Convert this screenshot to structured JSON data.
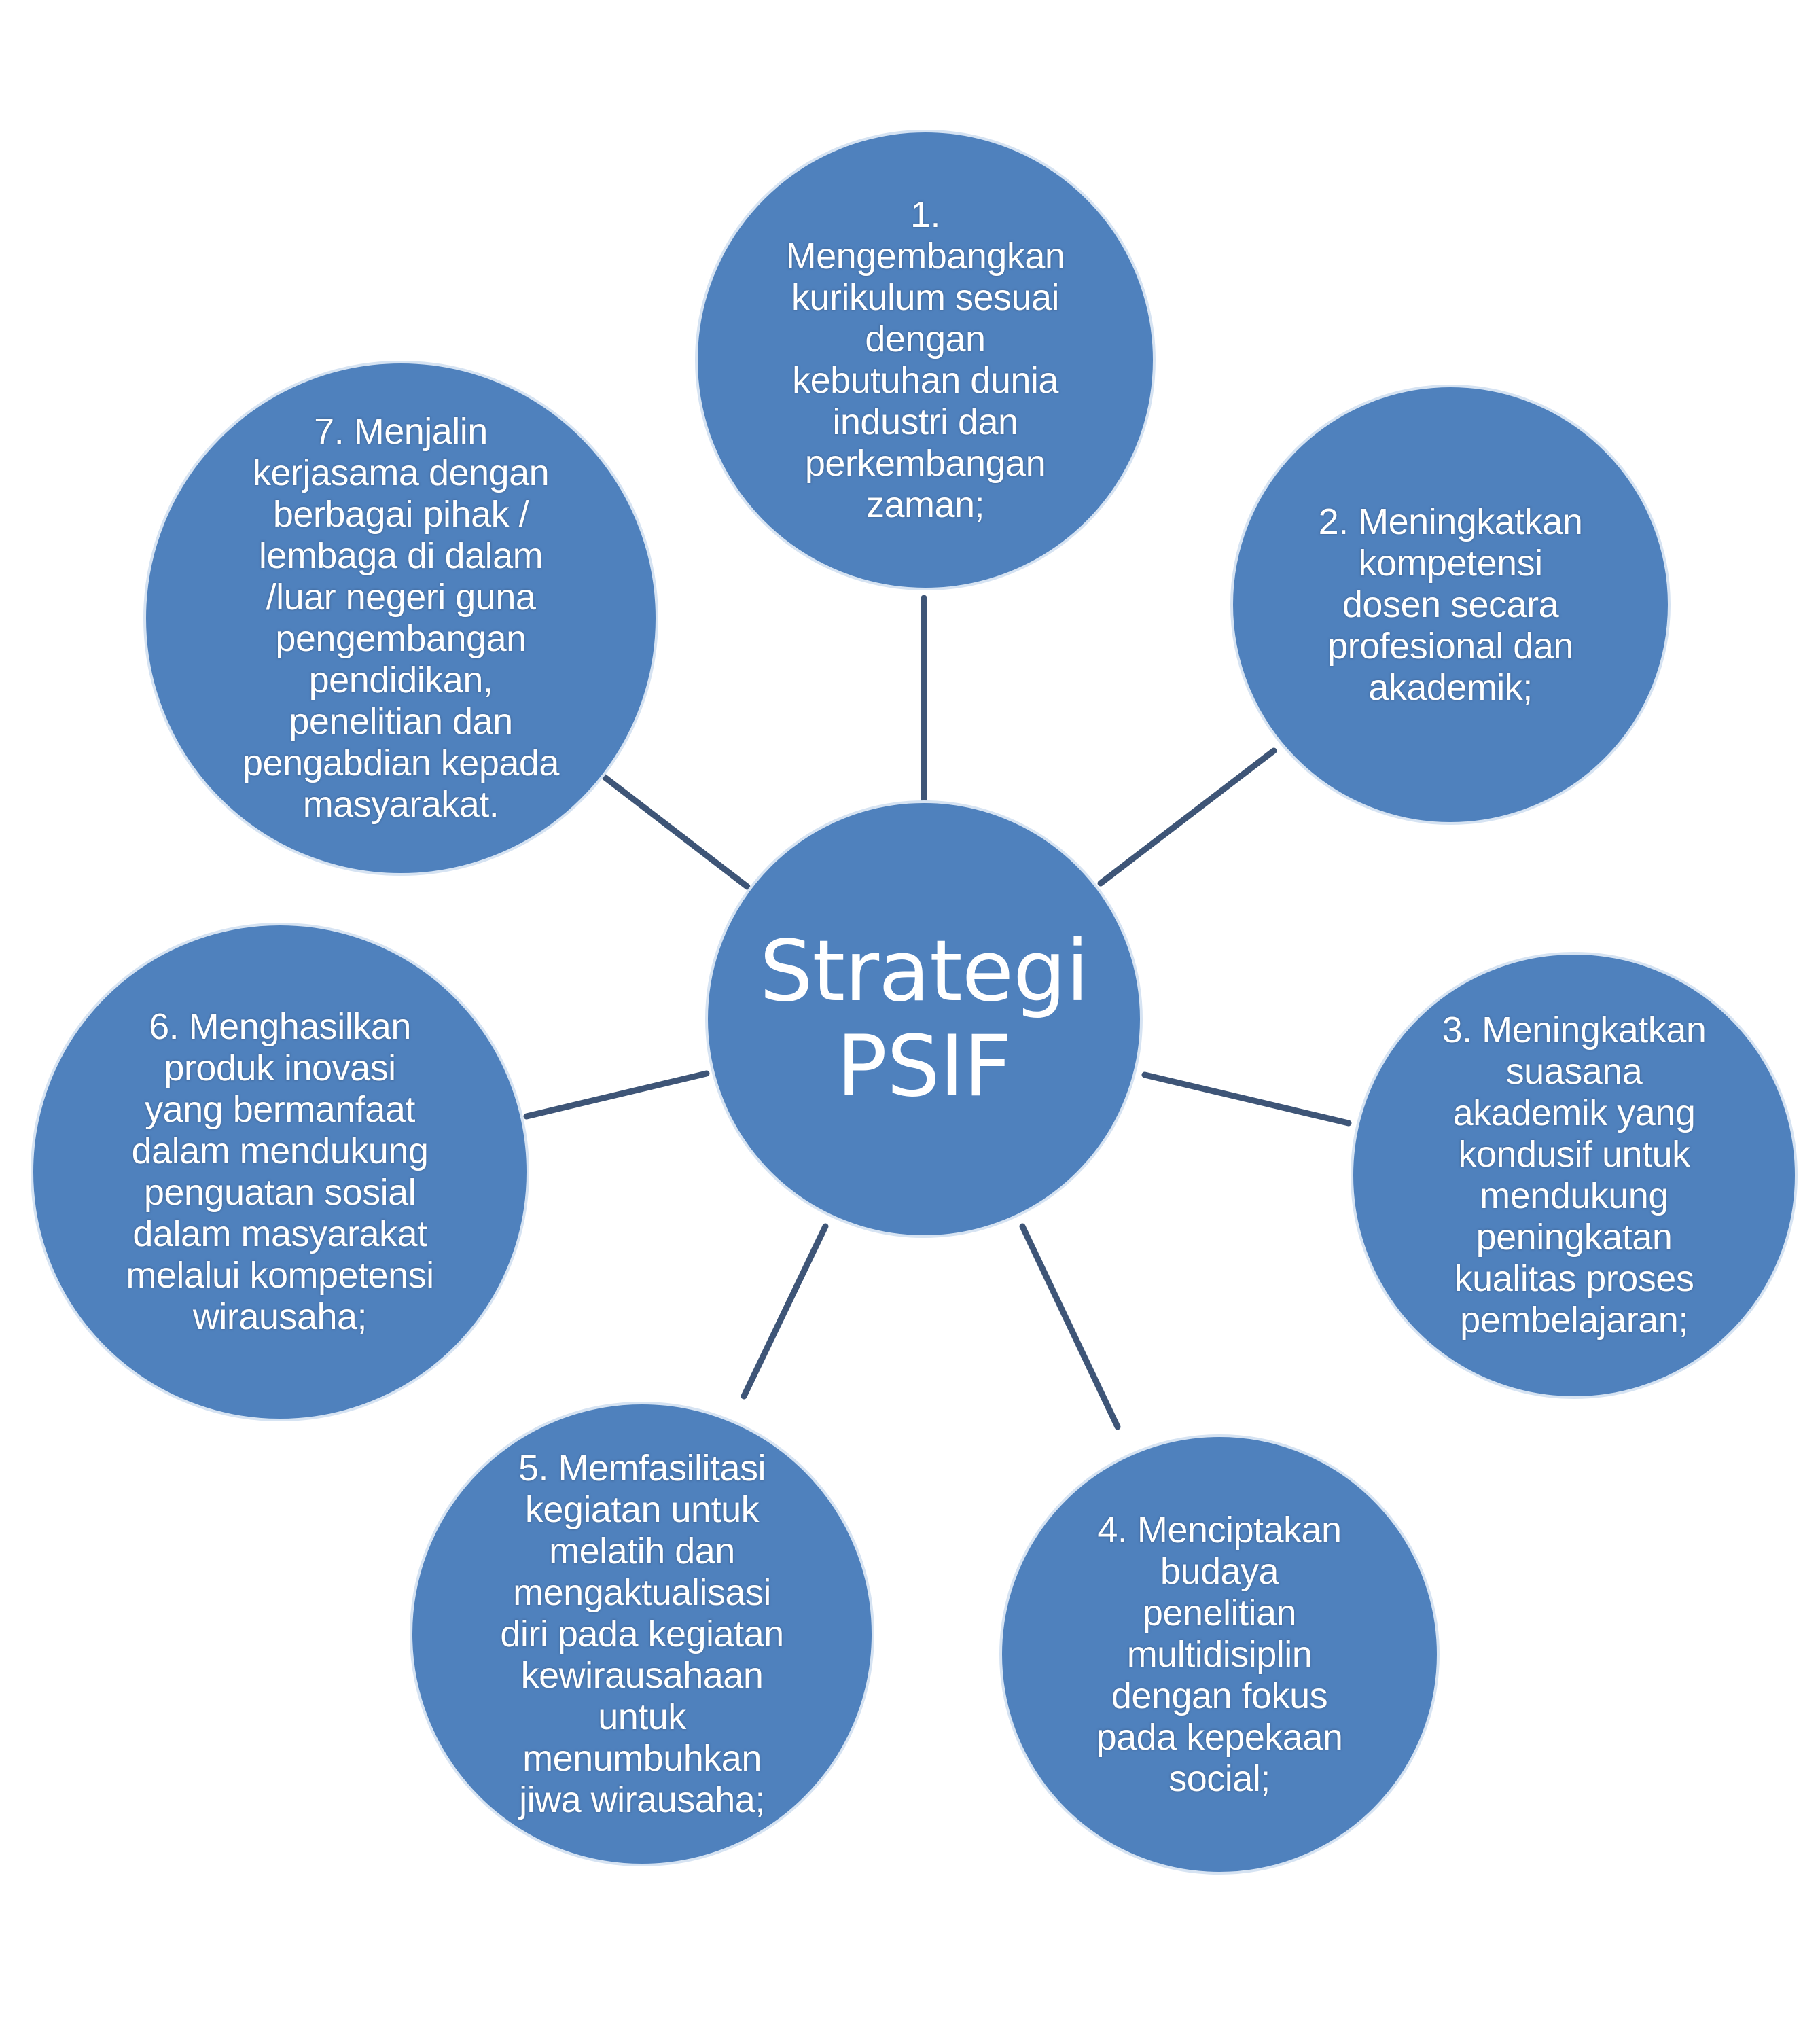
{
  "diagram": {
    "center": {
      "label": "Strategi\nPSIF"
    },
    "nodes": [
      {
        "id": "1",
        "label": "1.\nMengembangkan\nkurikulum sesuai\ndengan\nkebutuhan dunia\nindustri dan\nperkembangan\nzaman;"
      },
      {
        "id": "2",
        "label": "2. Meningkatkan\nkompetensi\ndosen secara\nprofesional dan\nakademik;"
      },
      {
        "id": "3",
        "label": "3. Meningkatkan\nsuasana\nakademik yang\nkondusif untuk\nmendukung\npeningkatan\nkualitas proses\npembelajaran;"
      },
      {
        "id": "4",
        "label": "4. Menciptakan\nbudaya\npenelitian\nmultidisiplin\ndengan fokus\npada kepekaan\nsocial;"
      },
      {
        "id": "5",
        "label": "5. Memfasilitasi\nkegiatan untuk\nmelatih dan\nmengaktualisasi\ndiri pada kegiatan\nkewirausahaan\nuntuk\nmenumbuhkan\njiwa wirausaha;"
      },
      {
        "id": "6",
        "label": "6. Menghasilkan\nproduk inovasi\nyang bermanfaat\ndalam mendukung\npenguatan sosial\ndalam masyarakat\nmelalui kompetensi\nwirausaha;"
      },
      {
        "id": "7",
        "label": "7. Menjalin\nkerjasama dengan\nberbagai pihak /\nlembaga di dalam\n/luar negeri guna\npengembangan\npendidikan,\npenelitian dan\npengabdian kepada\nmasyarakat."
      }
    ],
    "colors": {
      "node_fill": "#4f81bd",
      "connector": "#3e5577",
      "text": "#ffffff"
    }
  }
}
